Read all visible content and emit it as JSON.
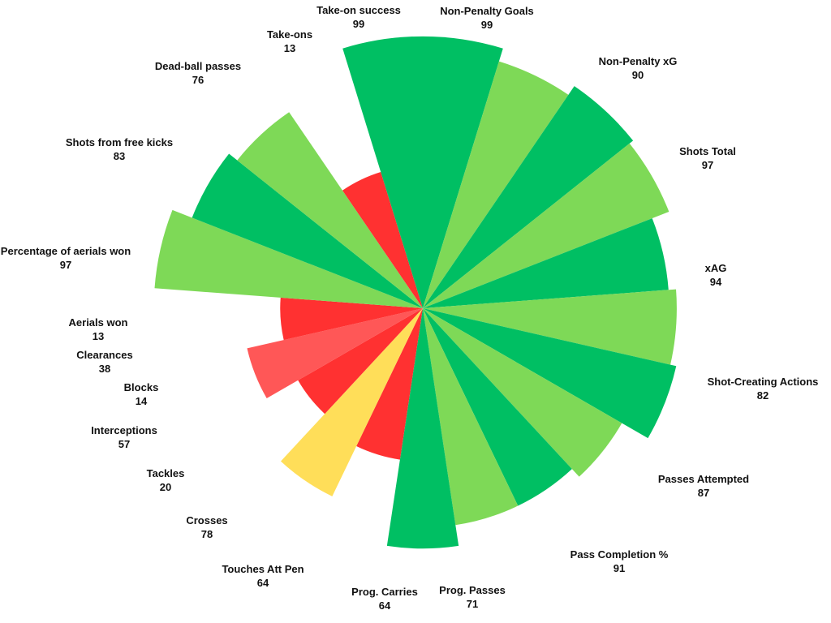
{
  "chart_data": {
    "type": "pie",
    "title": "",
    "legend": "none",
    "colors": {
      "high": "#00BF63",
      "mid_high": "#7ED957",
      "mid": "#FFDE59",
      "low": "#FF5757",
      "very_low": "#FF3131"
    },
    "slices": [
      {
        "label": "Non-Penalty Goals",
        "value": 99,
        "color": "#00BF63"
      },
      {
        "label": "Non-Penalty xG",
        "value": 90,
        "color": "#7ED957"
      },
      {
        "label": "Shots Total",
        "value": 97,
        "color": "#00BF63"
      },
      {
        "label": "xAG",
        "value": 94,
        "color": "#7ED957"
      },
      {
        "label": "Shot-Creating Actions",
        "value": 82,
        "color": "#00BF63"
      },
      {
        "label": "Passes Attempted",
        "value": 87,
        "color": "#7ED957"
      },
      {
        "label": "Pass Completion %",
        "value": 91,
        "color": "#00BF63"
      },
      {
        "label": "Prog. Passes",
        "value": 71,
        "color": "#7ED957"
      },
      {
        "label": "Prog. Carries",
        "value": 64,
        "color": "#00BF63"
      },
      {
        "label": "Touches Att Pen",
        "value": 64,
        "color": "#7ED957"
      },
      {
        "label": "Crosses",
        "value": 78,
        "color": "#00BF63"
      },
      {
        "label": "Tackles",
        "value": 20,
        "color": "#FF3131"
      },
      {
        "label": "Interceptions",
        "value": 57,
        "color": "#FFDE59"
      },
      {
        "label": "Blocks",
        "value": 14,
        "color": "#FF3131"
      },
      {
        "label": "Clearances",
        "value": 38,
        "color": "#FF5757"
      },
      {
        "label": "Aerials won",
        "value": 13,
        "color": "#FF3131"
      },
      {
        "label": "Percentage of aerials won",
        "value": 97,
        "color": "#7ED957"
      },
      {
        "label": "Shots from free kicks",
        "value": 83,
        "color": "#00BF63"
      },
      {
        "label": "Dead-ball passes",
        "value": 76,
        "color": "#7ED957"
      },
      {
        "label": "Take-ons",
        "value": 13,
        "color": "#FF3131"
      },
      {
        "label": "Take-on success",
        "value": 99,
        "color": "#00BF63"
      }
    ]
  }
}
